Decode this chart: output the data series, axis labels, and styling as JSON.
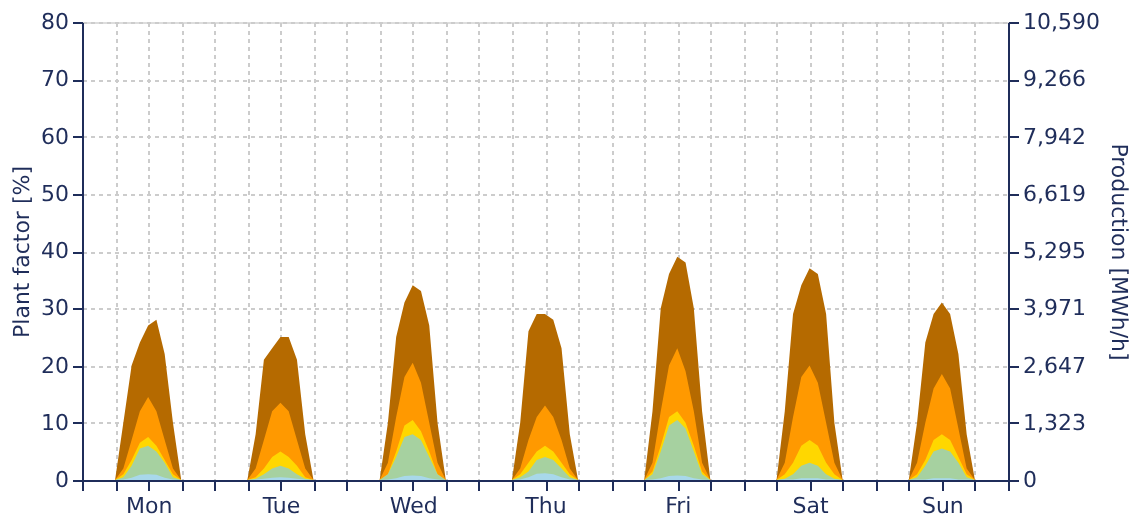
{
  "chart_data": {
    "type": "area",
    "ylabel": "Plant factor [%]",
    "y2label": "Production [MWh/h]",
    "categories": [
      null,
      null,
      null,
      null,
      null,
      null,
      null,
      null,
      "Mon",
      null,
      null,
      null,
      null,
      null,
      null,
      null,
      null,
      null,
      null,
      null,
      null,
      null,
      null,
      null,
      "Tue",
      null,
      null,
      null,
      null,
      null,
      null,
      null,
      null,
      null,
      null,
      null,
      null,
      null,
      null,
      null,
      "Wed",
      null,
      null,
      null,
      null,
      null,
      null,
      null,
      null,
      null,
      null,
      null,
      null,
      null,
      null,
      null,
      "Thu",
      null,
      null,
      null,
      null,
      null,
      null,
      null,
      null,
      null,
      null,
      null,
      null,
      null,
      null,
      null,
      "Fri",
      null,
      null,
      null,
      null,
      null,
      null,
      null,
      null,
      null,
      null,
      null,
      null,
      null,
      null,
      null,
      "Sat",
      null,
      null,
      null,
      null,
      null,
      null,
      null,
      null,
      null,
      null,
      null,
      null,
      null,
      null,
      null,
      "Sun",
      null,
      null,
      null,
      null,
      null,
      null,
      null
    ],
    "ylim": [
      0,
      80
    ],
    "yticks": [
      0,
      10,
      20,
      30,
      40,
      50,
      60,
      70,
      80
    ],
    "y2lim": [
      0,
      10590
    ],
    "y2ticks": [
      0,
      {
        "value": 1323,
        "label": "1,323"
      },
      {
        "value": 2647,
        "label": "2,647"
      },
      {
        "value": 3971,
        "label": "3,971"
      },
      {
        "value": 5295,
        "label": "5,295"
      },
      {
        "value": 6619,
        "label": "6,619"
      },
      {
        "value": 7942,
        "label": "7,942"
      },
      {
        "value": 9266,
        "label": "9,266"
      },
      {
        "value": 10590,
        "label": "10,590"
      }
    ],
    "grid": true,
    "series": [
      {
        "color": "#b56a00",
        "values": [
          0,
          0,
          0,
          0,
          0,
          10,
          20,
          24,
          27,
          28,
          22,
          10,
          0,
          0,
          0,
          0,
          0,
          0,
          0,
          0,
          0,
          8,
          21,
          23,
          25,
          25,
          21,
          8,
          0,
          0,
          0,
          0,
          0,
          0,
          0,
          0,
          0,
          10,
          25,
          31,
          34,
          33,
          27,
          10,
          0,
          0,
          0,
          0,
          0,
          0,
          0,
          0,
          0,
          10,
          26,
          29,
          29,
          28,
          23,
          8,
          0,
          0,
          0,
          0,
          0,
          0,
          0,
          0,
          0,
          12,
          30,
          36,
          39,
          38,
          30,
          12,
          0,
          0,
          0,
          0,
          0,
          0,
          0,
          0,
          0,
          12,
          29,
          34,
          37,
          36,
          29,
          10,
          0,
          0,
          0,
          0,
          0,
          0,
          0,
          0,
          0,
          10,
          24,
          29,
          31,
          29,
          22,
          8,
          0,
          0,
          0,
          0
        ]
      },
      {
        "color": "#ff9900",
        "values": [
          0,
          0,
          0,
          0,
          0,
          2,
          7,
          12,
          14.5,
          12,
          7,
          2,
          0,
          0,
          0,
          0,
          0,
          0,
          0,
          0,
          0,
          2,
          7,
          12,
          13.5,
          12,
          7,
          2,
          0,
          0,
          0,
          0,
          0,
          0,
          0,
          0,
          0,
          3,
          11,
          18,
          20.5,
          17,
          10,
          3,
          0,
          0,
          0,
          0,
          0,
          0,
          0,
          0,
          0,
          2,
          7,
          11,
          13,
          11,
          7,
          2,
          0,
          0,
          0,
          0,
          0,
          0,
          0,
          0,
          0,
          3,
          12,
          20,
          23,
          19,
          12,
          3,
          0,
          0,
          0,
          0,
          0,
          0,
          0,
          0,
          0,
          3,
          11,
          18,
          20,
          17,
          10,
          3,
          0,
          0,
          0,
          0,
          0,
          0,
          0,
          0,
          0,
          3,
          10,
          16,
          18.5,
          16,
          9,
          2,
          0,
          0,
          0,
          0
        ]
      },
      {
        "color": "#ffd700",
        "values": [
          0,
          0,
          0,
          0,
          0,
          1,
          3.5,
          6.5,
          7.5,
          6,
          3.5,
          1,
          0,
          0,
          0,
          0,
          0,
          0,
          0,
          0,
          0,
          0.5,
          2,
          4,
          5,
          4,
          2.5,
          0.5,
          0,
          0,
          0,
          0,
          0,
          0,
          0,
          0,
          0,
          1,
          5,
          9.5,
          10.5,
          8.5,
          5,
          1,
          0,
          0,
          0,
          0,
          0,
          0,
          0,
          0,
          0,
          1,
          3,
          5,
          6,
          5,
          3,
          1,
          0,
          0,
          0,
          0,
          0,
          0,
          0,
          0,
          0,
          1.5,
          6,
          11,
          12,
          10,
          6,
          1.5,
          0,
          0,
          0,
          0,
          0,
          0,
          0,
          0,
          0,
          1,
          3,
          6,
          7,
          6,
          3,
          1,
          0,
          0,
          0,
          0,
          0,
          0,
          0,
          0,
          0,
          1,
          3.5,
          7,
          8,
          7,
          4,
          1,
          0,
          0,
          0,
          0
        ]
      },
      {
        "color": "#a6d1a0",
        "values": [
          0,
          0,
          0,
          0,
          0,
          0.5,
          2.5,
          5.5,
          6,
          5,
          3,
          0.5,
          0,
          0,
          0,
          0,
          0,
          0,
          0,
          0,
          0,
          0.2,
          1,
          2,
          2.5,
          2,
          1,
          0.2,
          0,
          0,
          0,
          0,
          0,
          0,
          0,
          0,
          0,
          1,
          4,
          7.5,
          8,
          7,
          4,
          1,
          0,
          0,
          0,
          0,
          0,
          0,
          0,
          0,
          0,
          0.5,
          1.5,
          3.5,
          4,
          3.5,
          2,
          0.5,
          0,
          0,
          0,
          0,
          0,
          0,
          0,
          0,
          0,
          1,
          5,
          9.5,
          10.5,
          9,
          5,
          1,
          0,
          0,
          0,
          0,
          0,
          0,
          0,
          0,
          0,
          0.2,
          1,
          2.5,
          3,
          2.5,
          1,
          0.2,
          0,
          0,
          0,
          0,
          0,
          0,
          0,
          0,
          0,
          0.5,
          2.5,
          5,
          5.5,
          5,
          3,
          0.5,
          0,
          0,
          0,
          0
        ]
      },
      {
        "color": "#a8d8ea",
        "values": [
          0,
          0,
          0,
          0,
          0,
          0.1,
          0.4,
          0.9,
          1,
          0.9,
          0.4,
          0.1,
          0,
          0,
          0,
          0,
          0,
          0,
          0,
          0,
          0,
          0.1,
          0.2,
          0.4,
          0.5,
          0.4,
          0.2,
          0.1,
          0,
          0,
          0,
          0,
          0,
          0,
          0,
          0,
          0,
          0.1,
          0.3,
          0.7,
          0.8,
          0.7,
          0.3,
          0.1,
          0,
          0,
          0,
          0,
          0,
          0,
          0,
          0,
          0,
          0.1,
          0.5,
          1.1,
          1.2,
          1,
          0.5,
          0.1,
          0,
          0,
          0,
          0,
          0,
          0,
          0,
          0,
          0,
          0.1,
          0.3,
          0.7,
          0.8,
          0.7,
          0.3,
          0.1,
          0,
          0,
          0,
          0,
          0,
          0,
          0,
          0,
          0,
          0.1,
          0.1,
          0.3,
          0.3,
          0.3,
          0.1,
          0.1,
          0,
          0,
          0,
          0,
          0,
          0,
          0,
          0,
          0,
          0.1,
          0.1,
          0.3,
          0.3,
          0.3,
          0.1,
          0.1,
          0,
          0,
          0,
          0
        ]
      }
    ]
  }
}
